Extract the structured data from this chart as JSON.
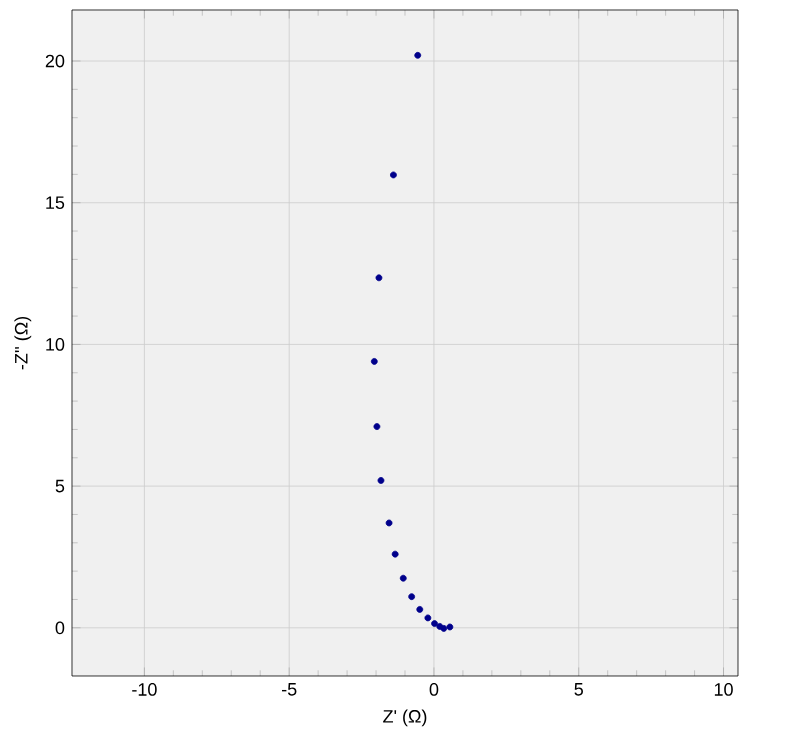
{
  "chart_data": {
    "type": "scatter",
    "xlabel": "Z' (Ω)",
    "ylabel": "-Z'' (Ω)",
    "x": [
      -0.56,
      -1.4,
      -1.9,
      -2.06,
      -1.97,
      -1.83,
      -1.55,
      -1.34,
      -1.06,
      -0.77,
      -0.49,
      -0.21,
      0.02,
      0.2,
      0.34,
      0.55
    ],
    "series": [
      {
        "color": "#00008b",
        "values": [
          20.2,
          15.98,
          12.35,
          9.4,
          7.1,
          5.2,
          3.7,
          2.6,
          1.75,
          1.1,
          0.65,
          0.35,
          0.15,
          0.05,
          -0.02,
          0.03
        ]
      }
    ],
    "xlim": [
      -12.5,
      10.5
    ],
    "ylim": [
      -1.7,
      21.8
    ],
    "xticks": [
      -10,
      -5,
      0,
      5,
      10
    ],
    "yticks": [
      0,
      5,
      10,
      15,
      20
    ],
    "grid": true
  }
}
